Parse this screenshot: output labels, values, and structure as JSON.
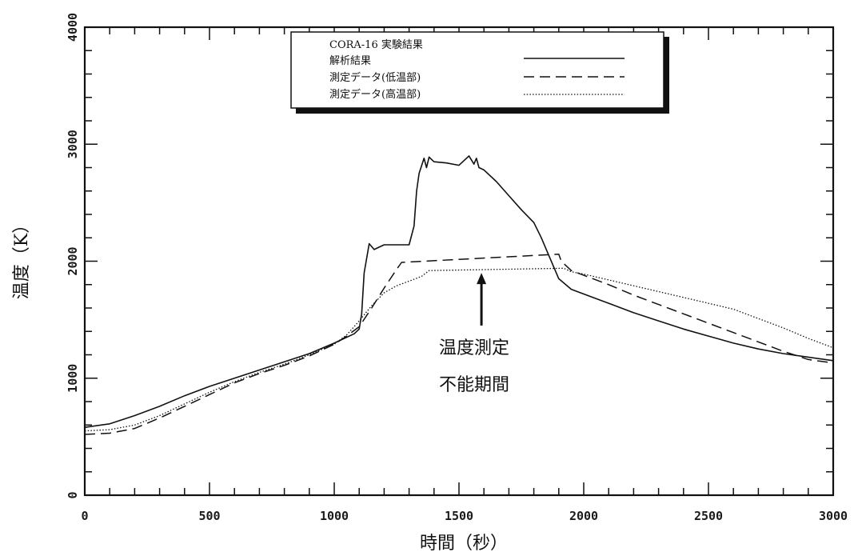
{
  "chart_data": {
    "type": "line",
    "xlabel": "時間（秒）",
    "ylabel": "温度（K）",
    "xlim": [
      0,
      3000
    ],
    "ylim": [
      0,
      4000
    ],
    "xticks": [
      "0",
      "500",
      "1000",
      "1500",
      "2000",
      "2500",
      "3000"
    ],
    "yticks": [
      "0",
      "1000",
      "2000",
      "3000",
      "4000"
    ],
    "grid": false,
    "legend": {
      "position": "top-center",
      "title": "CORA-16 実験結果",
      "entries": [
        "解析結果",
        "測定データ(低温部)",
        "測定データ(高温部)"
      ]
    },
    "annotation": {
      "lines": [
        "温度測定",
        "不能期間"
      ],
      "arrow_x": 1590,
      "arrow_from_y": 1450,
      "arrow_to_y": 1900
    },
    "series": [
      {
        "name": "解析結果",
        "style": "solid",
        "x": [
          0,
          100,
          200,
          300,
          400,
          500,
          600,
          700,
          800,
          900,
          1000,
          1080,
          1100,
          1110,
          1120,
          1140,
          1160,
          1180,
          1200,
          1250,
          1300,
          1320,
          1330,
          1340,
          1360,
          1370,
          1380,
          1390,
          1400,
          1450,
          1500,
          1540,
          1560,
          1570,
          1580,
          1600,
          1650,
          1700,
          1750,
          1800,
          1830,
          1850,
          1900,
          1950,
          2000,
          2100,
          2200,
          2300,
          2400,
          2500,
          2600,
          2700,
          2800,
          2900,
          3000
        ],
        "y": [
          580,
          610,
          680,
          760,
          850,
          930,
          1000,
          1070,
          1140,
          1210,
          1300,
          1380,
          1420,
          1550,
          1900,
          2150,
          2100,
          2120,
          2140,
          2140,
          2140,
          2300,
          2600,
          2750,
          2880,
          2800,
          2890,
          2870,
          2850,
          2840,
          2820,
          2900,
          2830,
          2880,
          2800,
          2780,
          2680,
          2560,
          2440,
          2330,
          2200,
          2100,
          1850,
          1760,
          1720,
          1640,
          1560,
          1490,
          1420,
          1360,
          1300,
          1250,
          1210,
          1180,
          1150
        ]
      },
      {
        "name": "測定データ(低温部)",
        "style": "dashed",
        "x": [
          0,
          100,
          200,
          300,
          400,
          500,
          600,
          700,
          800,
          900,
          1000,
          1050,
          1100,
          1150,
          1200,
          1250,
          1270,
          1900,
          1910,
          1950,
          2000,
          2100,
          2200,
          2300,
          2400,
          2500,
          2600,
          2700,
          2800,
          2900,
          3000
        ],
        "y": [
          520,
          530,
          570,
          660,
          760,
          860,
          960,
          1040,
          1110,
          1190,
          1290,
          1360,
          1440,
          1600,
          1770,
          1930,
          1990,
          2060,
          2000,
          1920,
          1880,
          1800,
          1710,
          1630,
          1550,
          1470,
          1390,
          1310,
          1230,
          1160,
          1130
        ]
      },
      {
        "name": "測定データ(高温部)",
        "style": "dotted",
        "x": [
          0,
          100,
          200,
          300,
          400,
          500,
          600,
          700,
          800,
          900,
          1000,
          1050,
          1100,
          1150,
          1200,
          1250,
          1300,
          1350,
          1380,
          1920,
          1950,
          2000,
          2100,
          2200,
          2300,
          2400,
          2500,
          2600,
          2700,
          2800,
          2900,
          3000
        ],
        "y": [
          550,
          560,
          600,
          680,
          780,
          880,
          970,
          1050,
          1120,
          1200,
          1290,
          1370,
          1490,
          1620,
          1730,
          1790,
          1830,
          1870,
          1920,
          1940,
          1910,
          1890,
          1840,
          1790,
          1740,
          1690,
          1640,
          1590,
          1510,
          1430,
          1340,
          1260
        ]
      }
    ]
  }
}
